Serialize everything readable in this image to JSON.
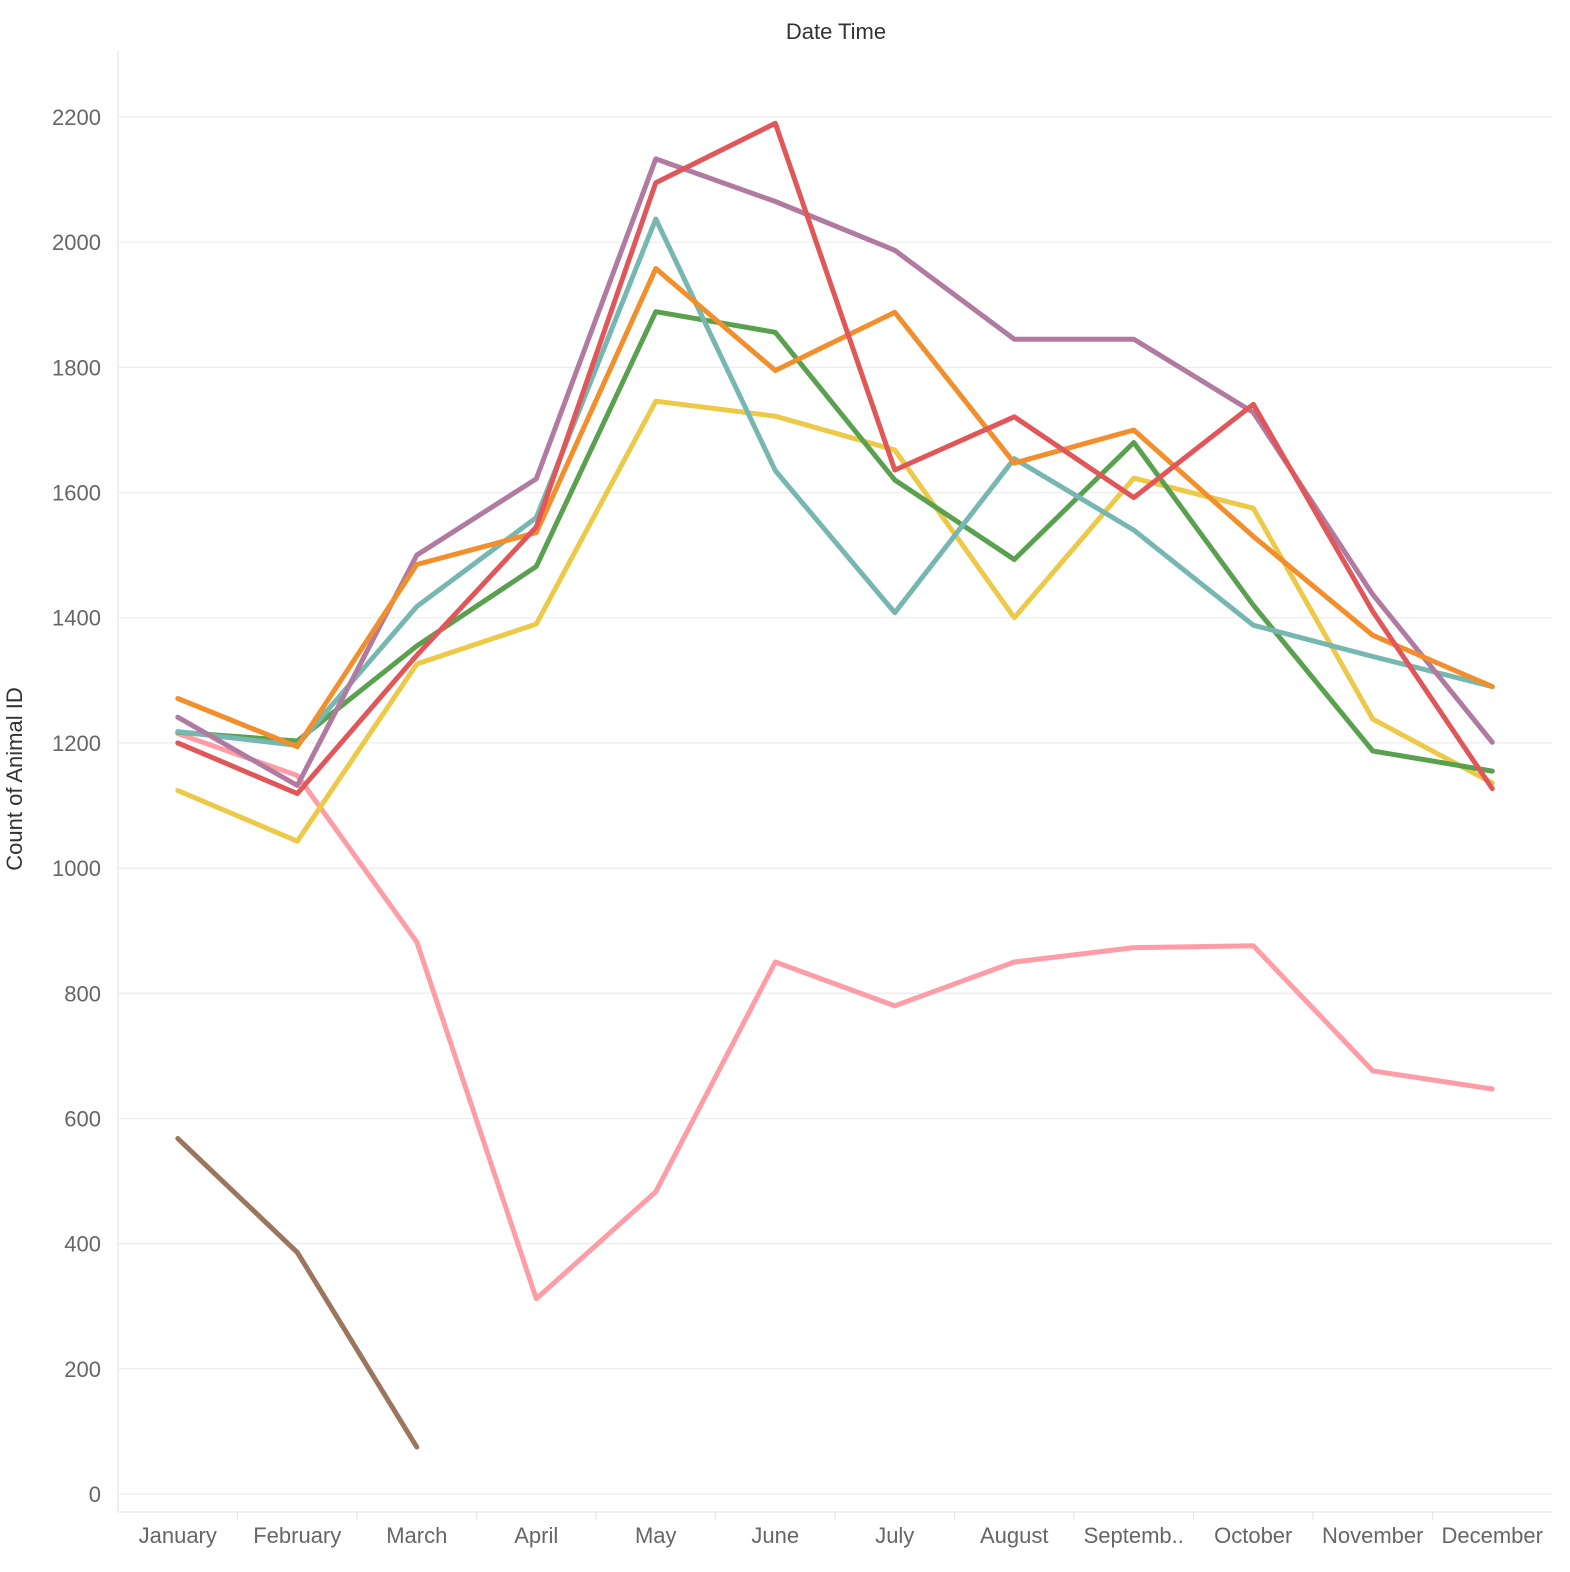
{
  "chart_data": {
    "type": "line",
    "title": "Date Time",
    "xlabel": "",
    "ylabel": "Count of Animal ID",
    "categories": [
      "January",
      "February",
      "March",
      "April",
      "May",
      "June",
      "July",
      "August",
      "Septemb..",
      "October",
      "November",
      "December"
    ],
    "yticks": [
      0,
      200,
      400,
      600,
      800,
      1000,
      1200,
      1400,
      1600,
      1800,
      2000,
      2200
    ],
    "ylim": [
      -30,
      2300
    ],
    "grid": true,
    "legend": "none",
    "series": [
      {
        "color": "#9c755f",
        "values": [
          568,
          386,
          75,
          null,
          null,
          null,
          null,
          null,
          null,
          null,
          null,
          null
        ]
      },
      {
        "color": "#ff9da7",
        "values": [
          1215,
          1148,
          882,
          312,
          483,
          850,
          780,
          850,
          873,
          876,
          676,
          647
        ]
      },
      {
        "color": "#edc948",
        "values": [
          1124,
          1043,
          1326,
          1390,
          1746,
          1722,
          1668,
          1400,
          1623,
          1575,
          1238,
          1136
        ]
      },
      {
        "color": "#59a14f",
        "values": [
          1217,
          1203,
          1355,
          1482,
          1889,
          1856,
          1620,
          1493,
          1680,
          1420,
          1187,
          1155
        ]
      },
      {
        "color": "#76b7b2",
        "values": [
          1218,
          1196,
          1418,
          1560,
          2037,
          1635,
          1408,
          1654,
          1540,
          1388,
          1338,
          1290
        ]
      },
      {
        "color": "#b07aa1",
        "values": [
          1241,
          1132,
          1500,
          1622,
          2133,
          2065,
          1987,
          1845,
          1845,
          1728,
          1437,
          1201
        ]
      },
      {
        "color": "#f28e2b",
        "values": [
          1271,
          1194,
          1485,
          1536,
          1958,
          1795,
          1888,
          1647,
          1700,
          1530,
          1372,
          1290
        ]
      },
      {
        "color": "#e15759",
        "values": [
          1200,
          1119,
          1340,
          1545,
          2095,
          2190,
          1636,
          1721,
          1592,
          1741,
          1410,
          1127
        ]
      }
    ]
  }
}
